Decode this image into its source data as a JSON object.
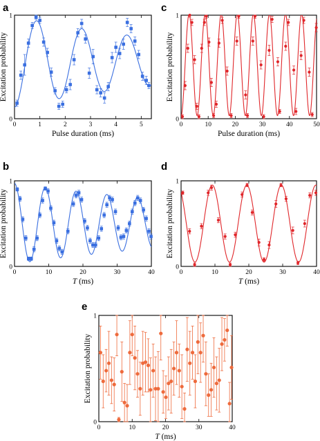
{
  "colors": {
    "blue": "#3a6fe0",
    "red": "#e0262a",
    "orange": "#ee6a3c"
  },
  "chart_data": [
    {
      "id": "a",
      "panel_label": "a",
      "type": "scatter",
      "color": "#3a6fe0",
      "marker": "square",
      "xlabel": "Pulse duration (ms)",
      "xlabel_italic": "",
      "xlabel_rest": "",
      "ylabel": "Excitation probability",
      "xlim": [
        0,
        5.4
      ],
      "ylim": [
        0,
        1
      ],
      "xticks": [
        0,
        1,
        2,
        3,
        4,
        5
      ],
      "yticks": [
        0,
        1
      ],
      "fit": {
        "kind": "damped_rabi",
        "x0": 0,
        "x1": 5.4,
        "mid": 0.55,
        "amp": 0.44,
        "period": 1.78,
        "phase": 0.88,
        "decay": 0.12,
        "center": 0.5
      },
      "points": [
        {
          "x": 0.1,
          "y": 0.15,
          "e": 0.03
        },
        {
          "x": 0.25,
          "y": 0.42,
          "e": 0.04
        },
        {
          "x": 0.4,
          "y": 0.52,
          "e": 0.1
        },
        {
          "x": 0.55,
          "y": 0.73,
          "e": 0.04
        },
        {
          "x": 0.7,
          "y": 0.9,
          "e": 0.03
        },
        {
          "x": 0.85,
          "y": 0.98,
          "e": 0.02
        },
        {
          "x": 1.0,
          "y": 0.95,
          "e": 0.03
        },
        {
          "x": 1.15,
          "y": 0.74,
          "e": 0.04
        },
        {
          "x": 1.3,
          "y": 0.64,
          "e": 0.04
        },
        {
          "x": 1.45,
          "y": 0.45,
          "e": 0.04
        },
        {
          "x": 1.6,
          "y": 0.27,
          "e": 0.03
        },
        {
          "x": 1.75,
          "y": 0.12,
          "e": 0.03
        },
        {
          "x": 1.9,
          "y": 0.14,
          "e": 0.03
        },
        {
          "x": 2.05,
          "y": 0.28,
          "e": 0.03
        },
        {
          "x": 2.2,
          "y": 0.33,
          "e": 0.05
        },
        {
          "x": 2.35,
          "y": 0.57,
          "e": 0.05
        },
        {
          "x": 2.5,
          "y": 0.83,
          "e": 0.04
        },
        {
          "x": 2.65,
          "y": 0.92,
          "e": 0.04
        },
        {
          "x": 2.8,
          "y": 0.77,
          "e": 0.04
        },
        {
          "x": 2.95,
          "y": 0.44,
          "e": 0.05
        },
        {
          "x": 3.1,
          "y": 0.6,
          "e": 0.07
        },
        {
          "x": 3.25,
          "y": 0.28,
          "e": 0.04
        },
        {
          "x": 3.4,
          "y": 0.25,
          "e": 0.04
        },
        {
          "x": 3.55,
          "y": 0.2,
          "e": 0.05
        },
        {
          "x": 3.7,
          "y": 0.31,
          "e": 0.04
        },
        {
          "x": 3.85,
          "y": 0.59,
          "e": 0.05
        },
        {
          "x": 4.0,
          "y": 0.69,
          "e": 0.05
        },
        {
          "x": 4.15,
          "y": 0.63,
          "e": 0.05
        },
        {
          "x": 4.3,
          "y": 0.72,
          "e": 0.05
        },
        {
          "x": 4.45,
          "y": 0.93,
          "e": 0.04
        },
        {
          "x": 4.6,
          "y": 0.87,
          "e": 0.04
        },
        {
          "x": 4.75,
          "y": 0.75,
          "e": 0.04
        },
        {
          "x": 4.9,
          "y": 0.62,
          "e": 0.04
        },
        {
          "x": 5.05,
          "y": 0.41,
          "e": 0.04
        },
        {
          "x": 5.2,
          "y": 0.37,
          "e": 0.04
        },
        {
          "x": 5.3,
          "y": 0.32,
          "e": 0.03
        }
      ]
    },
    {
      "id": "c",
      "panel_label": "c",
      "type": "scatter",
      "color": "#e0262a",
      "marker": "circle",
      "xlabel": "Pulse duration (ms)",
      "xlabel_italic": "",
      "xlabel_rest": "",
      "ylabel": "Excitation probability",
      "xlim": [
        0,
        50
      ],
      "ylim": [
        0,
        1
      ],
      "xticks": [
        0,
        10,
        20,
        30,
        40,
        50
      ],
      "yticks": [
        0,
        1
      ],
      "fit": {
        "kind": "cos",
        "x0": 0,
        "x1": 50,
        "mid": 0.52,
        "amp": 0.49,
        "period": 5.93,
        "phase": 2.96
      },
      "points": [
        {
          "x": 0.5,
          "y": 0.02,
          "e": 0.02
        },
        {
          "x": 1.5,
          "y": 0.32,
          "e": 0.04
        },
        {
          "x": 2.5,
          "y": 0.68,
          "e": 0.04
        },
        {
          "x": 3.2,
          "y": 1.0,
          "e": 0.02
        },
        {
          "x": 4.0,
          "y": 0.93,
          "e": 0.03
        },
        {
          "x": 5.0,
          "y": 0.57,
          "e": 0.04
        },
        {
          "x": 5.8,
          "y": 0.12,
          "e": 0.03
        },
        {
          "x": 6.6,
          "y": 0.02,
          "e": 0.02
        },
        {
          "x": 7.6,
          "y": 0.68,
          "e": 0.04
        },
        {
          "x": 8.6,
          "y": 0.93,
          "e": 0.03
        },
        {
          "x": 9.3,
          "y": 0.99,
          "e": 0.02
        },
        {
          "x": 10.3,
          "y": 0.74,
          "e": 0.04
        },
        {
          "x": 11.2,
          "y": 0.35,
          "e": 0.04
        },
        {
          "x": 12.0,
          "y": 0.03,
          "e": 0.02
        },
        {
          "x": 13.0,
          "y": 0.14,
          "e": 0.03
        },
        {
          "x": 14.0,
          "y": 0.73,
          "e": 0.04
        },
        {
          "x": 15.2,
          "y": 0.95,
          "e": 0.03
        },
        {
          "x": 17.0,
          "y": 0.46,
          "e": 0.04
        },
        {
          "x": 18.5,
          "y": 0.03,
          "e": 0.02
        },
        {
          "x": 20.6,
          "y": 0.75,
          "e": 0.04
        },
        {
          "x": 21.3,
          "y": 0.99,
          "e": 0.02
        },
        {
          "x": 23.8,
          "y": 0.23,
          "e": 0.04
        },
        {
          "x": 24.5,
          "y": 0.03,
          "e": 0.02
        },
        {
          "x": 26.5,
          "y": 0.75,
          "e": 0.04
        },
        {
          "x": 27.3,
          "y": 0.99,
          "e": 0.02
        },
        {
          "x": 29.5,
          "y": 0.52,
          "e": 0.04
        },
        {
          "x": 30.5,
          "y": 0.02,
          "e": 0.02
        },
        {
          "x": 32.5,
          "y": 0.66,
          "e": 0.05
        },
        {
          "x": 33.6,
          "y": 0.96,
          "e": 0.03
        },
        {
          "x": 35.7,
          "y": 0.55,
          "e": 0.04
        },
        {
          "x": 36.4,
          "y": 0.07,
          "e": 0.02
        },
        {
          "x": 38.6,
          "y": 0.7,
          "e": 0.04
        },
        {
          "x": 39.6,
          "y": 0.93,
          "e": 0.03
        },
        {
          "x": 41.6,
          "y": 0.47,
          "e": 0.04
        },
        {
          "x": 42.4,
          "y": 0.07,
          "e": 0.03
        },
        {
          "x": 44.3,
          "y": 0.61,
          "e": 0.04
        },
        {
          "x": 45.3,
          "y": 0.95,
          "e": 0.03
        },
        {
          "x": 47.3,
          "y": 0.45,
          "e": 0.04
        },
        {
          "x": 48.4,
          "y": 0.04,
          "e": 0.02
        },
        {
          "x": 49.9,
          "y": 0.88,
          "e": 0.04
        }
      ]
    },
    {
      "id": "b",
      "panel_label": "b",
      "type": "scatter",
      "color": "#3a6fe0",
      "marker": "square",
      "xlabel": "",
      "xlabel_italic": "T",
      "xlabel_rest": " (ms)",
      "ylabel": "Excitation probability",
      "xlim": [
        0,
        40
      ],
      "ylim": [
        0,
        1
      ],
      "xticks": [
        0,
        10,
        20,
        30,
        40
      ],
      "yticks": [
        0,
        1
      ],
      "fit": {
        "kind": "damped_rabi",
        "x0": 0,
        "x1": 40,
        "mid": 0.5,
        "amp": 0.47,
        "period": 9.0,
        "phase": 0,
        "decay": 0.012,
        "center": 0.5
      },
      "points": [
        {
          "x": 0.8,
          "y": 0.9,
          "e": 0.02
        },
        {
          "x": 1.6,
          "y": 0.79,
          "e": 0.03
        },
        {
          "x": 2.4,
          "y": 0.55,
          "e": 0.03
        },
        {
          "x": 3.3,
          "y": 0.33,
          "e": 0.03
        },
        {
          "x": 4.1,
          "y": 0.09,
          "e": 0.02
        },
        {
          "x": 4.9,
          "y": 0.09,
          "e": 0.02
        },
        {
          "x": 5.7,
          "y": 0.2,
          "e": 0.03
        },
        {
          "x": 6.6,
          "y": 0.33,
          "e": 0.03
        },
        {
          "x": 7.4,
          "y": 0.6,
          "e": 0.03
        },
        {
          "x": 8.2,
          "y": 0.77,
          "e": 0.03
        },
        {
          "x": 9.0,
          "y": 0.91,
          "e": 0.02
        },
        {
          "x": 9.8,
          "y": 0.88,
          "e": 0.03
        },
        {
          "x": 10.6,
          "y": 0.68,
          "e": 0.03
        },
        {
          "x": 11.5,
          "y": 0.51,
          "e": 0.03
        },
        {
          "x": 12.3,
          "y": 0.3,
          "e": 0.03
        },
        {
          "x": 13.1,
          "y": 0.21,
          "e": 0.03
        },
        {
          "x": 13.9,
          "y": 0.17,
          "e": 0.03
        },
        {
          "x": 15.6,
          "y": 0.41,
          "e": 0.03
        },
        {
          "x": 17.2,
          "y": 0.73,
          "e": 0.03
        },
        {
          "x": 18.0,
          "y": 0.83,
          "e": 0.03
        },
        {
          "x": 18.8,
          "y": 0.86,
          "e": 0.03
        },
        {
          "x": 19.6,
          "y": 0.78,
          "e": 0.03
        },
        {
          "x": 20.5,
          "y": 0.53,
          "e": 0.03
        },
        {
          "x": 21.3,
          "y": 0.45,
          "e": 0.03
        },
        {
          "x": 22.1,
          "y": 0.3,
          "e": 0.03
        },
        {
          "x": 22.9,
          "y": 0.25,
          "e": 0.03
        },
        {
          "x": 23.7,
          "y": 0.25,
          "e": 0.03
        },
        {
          "x": 24.6,
          "y": 0.33,
          "e": 0.03
        },
        {
          "x": 25.4,
          "y": 0.44,
          "e": 0.03
        },
        {
          "x": 26.2,
          "y": 0.6,
          "e": 0.03
        },
        {
          "x": 27.0,
          "y": 0.72,
          "e": 0.03
        },
        {
          "x": 27.8,
          "y": 0.8,
          "e": 0.03
        },
        {
          "x": 28.6,
          "y": 0.78,
          "e": 0.03
        },
        {
          "x": 29.5,
          "y": 0.64,
          "e": 0.03
        },
        {
          "x": 30.3,
          "y": 0.45,
          "e": 0.03
        },
        {
          "x": 31.1,
          "y": 0.34,
          "e": 0.03
        },
        {
          "x": 31.9,
          "y": 0.35,
          "e": 0.03
        },
        {
          "x": 32.7,
          "y": 0.42,
          "e": 0.03
        },
        {
          "x": 33.6,
          "y": 0.5,
          "e": 0.03
        },
        {
          "x": 34.4,
          "y": 0.64,
          "e": 0.03
        },
        {
          "x": 35.2,
          "y": 0.74,
          "e": 0.03
        },
        {
          "x": 36.0,
          "y": 0.8,
          "e": 0.03
        },
        {
          "x": 36.8,
          "y": 0.77,
          "e": 0.03
        },
        {
          "x": 37.7,
          "y": 0.66,
          "e": 0.03
        },
        {
          "x": 38.5,
          "y": 0.56,
          "e": 0.03
        },
        {
          "x": 39.3,
          "y": 0.41,
          "e": 0.03
        },
        {
          "x": 39.9,
          "y": 0.35,
          "e": 0.03
        }
      ]
    },
    {
      "id": "d",
      "panel_label": "d",
      "type": "scatter",
      "color": "#e0262a",
      "marker": "circle",
      "xlabel": "",
      "xlabel_italic": "T",
      "xlabel_rest": " (ms)",
      "ylabel": "Excitation probability",
      "xlim": [
        0,
        40
      ],
      "ylim": [
        0,
        1
      ],
      "xticks": [
        0,
        10,
        20,
        30,
        40
      ],
      "yticks": [
        0,
        1
      ],
      "fit": {
        "kind": "cos",
        "x0": 0,
        "x1": 40,
        "mid": 0.5,
        "amp": 0.45,
        "period": 10.2,
        "phase": 9.2
      },
      "points": [
        {
          "x": 0.5,
          "y": 0.86,
          "e": 0.02
        },
        {
          "x": 2.5,
          "y": 0.41,
          "e": 0.03
        },
        {
          "x": 4.0,
          "y": 0.02,
          "e": 0.02
        },
        {
          "x": 6.0,
          "y": 0.47,
          "e": 0.03
        },
        {
          "x": 8.0,
          "y": 0.86,
          "e": 0.03
        },
        {
          "x": 9.0,
          "y": 0.92,
          "e": 0.03
        },
        {
          "x": 11.0,
          "y": 0.54,
          "e": 0.03
        },
        {
          "x": 13.0,
          "y": 0.35,
          "e": 0.03
        },
        {
          "x": 14.5,
          "y": 0.02,
          "e": 0.02
        },
        {
          "x": 16.0,
          "y": 0.37,
          "e": 0.03
        },
        {
          "x": 18.0,
          "y": 0.84,
          "e": 0.03
        },
        {
          "x": 19.5,
          "y": 0.95,
          "e": 0.02
        },
        {
          "x": 21.0,
          "y": 0.63,
          "e": 0.03
        },
        {
          "x": 23.0,
          "y": 0.28,
          "e": 0.04
        },
        {
          "x": 24.5,
          "y": 0.08,
          "e": 0.02
        },
        {
          "x": 26.0,
          "y": 0.25,
          "e": 0.04
        },
        {
          "x": 28.0,
          "y": 0.73,
          "e": 0.04
        },
        {
          "x": 29.5,
          "y": 0.95,
          "e": 0.02
        },
        {
          "x": 31.0,
          "y": 0.79,
          "e": 0.03
        },
        {
          "x": 33.0,
          "y": 0.42,
          "e": 0.04
        },
        {
          "x": 34.5,
          "y": 0.04,
          "e": 0.02
        },
        {
          "x": 36.5,
          "y": 0.5,
          "e": 0.04
        },
        {
          "x": 38.0,
          "y": 0.83,
          "e": 0.03
        },
        {
          "x": 39.8,
          "y": 0.86,
          "e": 0.03
        }
      ]
    },
    {
      "id": "e",
      "panel_label": "e",
      "type": "scatter",
      "color": "#ee6a3c",
      "marker": "circle",
      "xlabel": "",
      "xlabel_italic": "T",
      "xlabel_rest": " (ms)",
      "ylabel": "Excitation probability",
      "xlim": [
        0,
        40
      ],
      "ylim": [
        0,
        1
      ],
      "xticks": [
        0,
        10,
        20,
        30,
        40
      ],
      "yticks": [
        0,
        1
      ],
      "fit": null,
      "points": [
        {
          "x": 0.5,
          "y": 0.65,
          "e": 0.25
        },
        {
          "x": 1.3,
          "y": 0.38,
          "e": 0.25
        },
        {
          "x": 2.2,
          "y": 0.48,
          "e": 0.2
        },
        {
          "x": 3.0,
          "y": 0.55,
          "e": 0.3
        },
        {
          "x": 3.8,
          "y": 0.39,
          "e": 0.22
        },
        {
          "x": 4.6,
          "y": 0.35,
          "e": 0.25
        },
        {
          "x": 5.4,
          "y": 0.82,
          "e": 0.2
        },
        {
          "x": 6.0,
          "y": 0.02,
          "e": 0.02
        },
        {
          "x": 6.9,
          "y": 0.47,
          "e": 0.28
        },
        {
          "x": 7.7,
          "y": 0.18,
          "e": 0.18
        },
        {
          "x": 8.5,
          "y": 0.15,
          "e": 0.2
        },
        {
          "x": 9.3,
          "y": 0.65,
          "e": 0.3
        },
        {
          "x": 10.0,
          "y": 0.82,
          "e": 0.2
        },
        {
          "x": 10.8,
          "y": 0.6,
          "e": 0.3
        },
        {
          "x": 11.6,
          "y": 0.45,
          "e": 0.22
        },
        {
          "x": 12.4,
          "y": 0.31,
          "e": 0.25
        },
        {
          "x": 13.2,
          "y": 0.55,
          "e": 0.3
        },
        {
          "x": 14.0,
          "y": 0.56,
          "e": 0.28
        },
        {
          "x": 14.8,
          "y": 0.53,
          "e": 0.25
        },
        {
          "x": 15.5,
          "y": 0.3,
          "e": 0.3
        },
        {
          "x": 16.3,
          "y": 0.48,
          "e": 0.25
        },
        {
          "x": 17.0,
          "y": 0.31,
          "e": 0.3
        },
        {
          "x": 17.8,
          "y": 0.31,
          "e": 0.35
        },
        {
          "x": 18.6,
          "y": 0.83,
          "e": 0.25
        },
        {
          "x": 19.3,
          "y": 0.28,
          "e": 0.2
        },
        {
          "x": 20.1,
          "y": 0.23,
          "e": 0.2
        },
        {
          "x": 20.9,
          "y": 0.36,
          "e": 0.25
        },
        {
          "x": 21.7,
          "y": 0.38,
          "e": 0.3
        },
        {
          "x": 22.5,
          "y": 0.5,
          "e": 0.25
        },
        {
          "x": 23.3,
          "y": 0.65,
          "e": 0.3
        },
        {
          "x": 24.1,
          "y": 0.48,
          "e": 0.25
        },
        {
          "x": 24.9,
          "y": 0.33,
          "e": 0.3
        },
        {
          "x": 25.7,
          "y": 0.12,
          "e": 0.15
        },
        {
          "x": 26.5,
          "y": 0.68,
          "e": 0.3
        },
        {
          "x": 27.3,
          "y": 0.55,
          "e": 0.3
        },
        {
          "x": 28.1,
          "y": 0.65,
          "e": 0.25
        },
        {
          "x": 28.9,
          "y": 0.38,
          "e": 0.25
        },
        {
          "x": 29.7,
          "y": 0.75,
          "e": 0.3
        },
        {
          "x": 30.5,
          "y": 0.65,
          "e": 0.28
        },
        {
          "x": 31.3,
          "y": 0.81,
          "e": 0.25
        },
        {
          "x": 32.1,
          "y": 0.45,
          "e": 0.3
        },
        {
          "x": 32.9,
          "y": 0.25,
          "e": 0.2
        },
        {
          "x": 33.7,
          "y": 0.3,
          "e": 0.25
        },
        {
          "x": 34.5,
          "y": 0.51,
          "e": 0.28
        },
        {
          "x": 35.3,
          "y": 0.36,
          "e": 0.25
        },
        {
          "x": 36.1,
          "y": 0.39,
          "e": 0.3
        },
        {
          "x": 36.9,
          "y": 0.73,
          "e": 0.25
        },
        {
          "x": 37.7,
          "y": 0.77,
          "e": 0.2
        },
        {
          "x": 38.5,
          "y": 0.86,
          "e": 0.15
        },
        {
          "x": 39.2,
          "y": 0.17,
          "e": 0.2
        },
        {
          "x": 39.8,
          "y": 0.51,
          "e": 0.3
        }
      ]
    }
  ]
}
